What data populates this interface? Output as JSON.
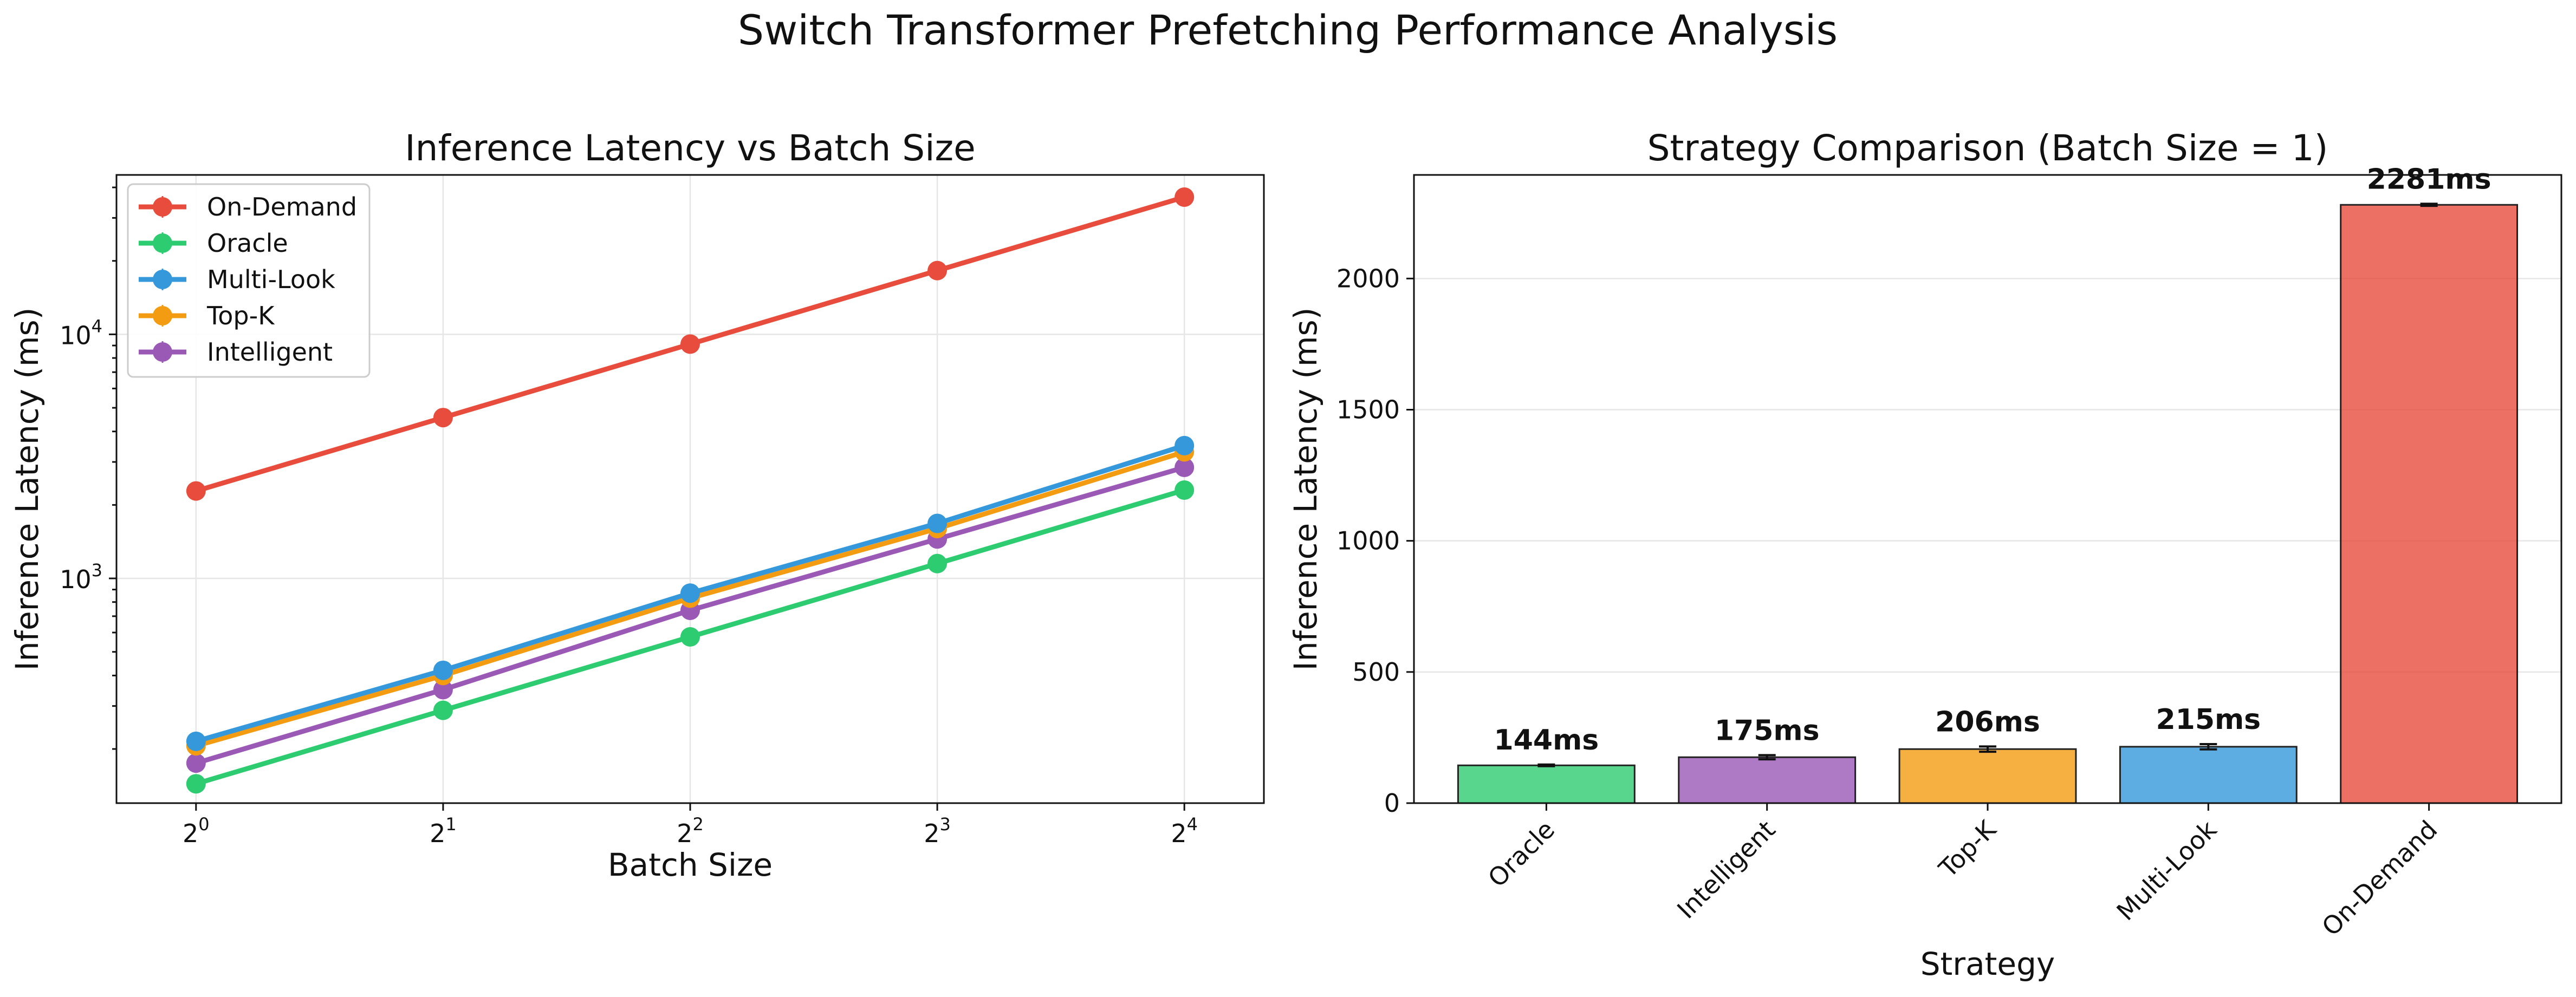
{
  "suptitle": "Switch Transformer Prefetching Performance Analysis",
  "chart_data": [
    {
      "type": "line",
      "title": "Inference Latency vs Batch Size",
      "xlabel": "Batch Size",
      "ylabel": "Inference Latency (ms)",
      "x": [
        1,
        2,
        4,
        8,
        16
      ],
      "xscale": "log2",
      "x_tick_labels": [
        {
          "base": "2",
          "exp": "0"
        },
        {
          "base": "2",
          "exp": "1"
        },
        {
          "base": "2",
          "exp": "2"
        },
        {
          "base": "2",
          "exp": "3"
        },
        {
          "base": "2",
          "exp": "4"
        }
      ],
      "yscale": "log10",
      "ylim": [
        120,
        45000
      ],
      "y_tick_labels": [
        {
          "value": 1000,
          "base": "10",
          "exp": "3"
        },
        {
          "value": 10000,
          "base": "10",
          "exp": "4"
        }
      ],
      "grid": true,
      "legend_position": "top-left",
      "series": [
        {
          "name": "On-Demand",
          "color": "#e74c3c",
          "values": [
            2281,
            4560,
            9120,
            18250,
            36500
          ]
        },
        {
          "name": "Oracle",
          "color": "#2ecc71",
          "values": [
            144,
            288,
            576,
            1150,
            2300
          ]
        },
        {
          "name": "Multi-Look",
          "color": "#3498db",
          "values": [
            215,
            420,
            870,
            1680,
            3500
          ]
        },
        {
          "name": "Top-K",
          "color": "#f39c12",
          "values": [
            206,
            400,
            830,
            1600,
            3300
          ]
        },
        {
          "name": "Intelligent",
          "color": "#9b59b6",
          "values": [
            175,
            350,
            740,
            1450,
            2850
          ]
        }
      ]
    },
    {
      "type": "bar",
      "title": "Strategy Comparison (Batch Size = 1)",
      "xlabel": "Strategy",
      "ylabel": "Inference Latency (ms)",
      "categories": [
        "Oracle",
        "Intelligent",
        "Top-K",
        "Multi-Look",
        "On-Demand"
      ],
      "values": [
        144,
        175,
        206,
        215,
        2281
      ],
      "errors": [
        3,
        8,
        10,
        10,
        4
      ],
      "value_labels": [
        "144ms",
        "175ms",
        "206ms",
        "215ms",
        "2281ms"
      ],
      "colors": [
        "#2ecc71",
        "#9b59b6",
        "#f39c12",
        "#3498db",
        "#e74c3c"
      ],
      "ylim": [
        0,
        2395
      ],
      "y_ticks": [
        0,
        500,
        1000,
        1500,
        2000
      ],
      "grid": "y"
    }
  ]
}
